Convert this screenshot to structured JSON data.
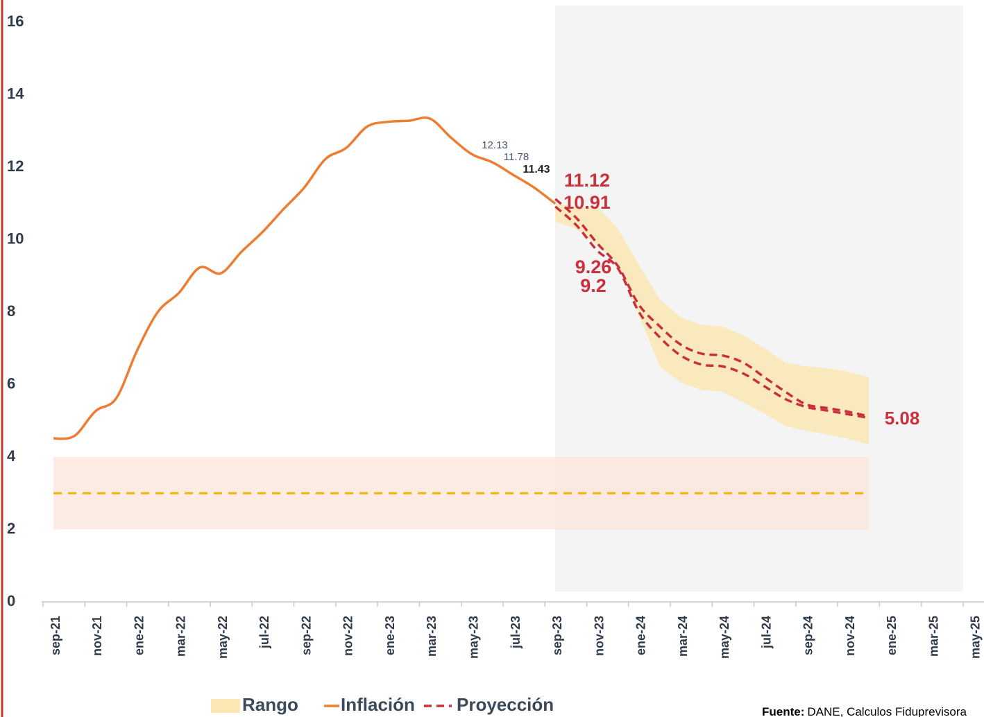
{
  "chart_data": {
    "type": "line",
    "categories": [
      "sep-21",
      null,
      "nov-21",
      null,
      "ene-22",
      null,
      "mar-22",
      null,
      "may-22",
      null,
      "jul-22",
      null,
      "sep-22",
      null,
      "nov-22",
      null,
      "ene-23",
      null,
      "mar-23",
      null,
      "may-23",
      null,
      "jul-23",
      null,
      "sep-23",
      null,
      "nov-23",
      null,
      "ene-24",
      null,
      "mar-24",
      null,
      "may-24",
      null,
      "jul-24",
      null,
      "sep-24",
      null,
      "nov-24",
      null,
      "ene-25",
      null,
      "mar-25",
      null,
      "may-25"
    ],
    "series": [
      {
        "name": "Rango",
        "kind": "range",
        "color": "#fbe6b4",
        "values": [
          null,
          null,
          null,
          null,
          null,
          null,
          null,
          null,
          null,
          null,
          null,
          null,
          null,
          null,
          null,
          null,
          null,
          null,
          null,
          null,
          null,
          null,
          null,
          null,
          11.0,
          10.9,
          10.9,
          10.3,
          9.3,
          8.35,
          7.85,
          7.65,
          7.6,
          7.35,
          7.0,
          6.6,
          6.5,
          6.45,
          6.35,
          6.2,
          null,
          null,
          null,
          null,
          null
        ],
        "low": [
          null,
          null,
          null,
          null,
          null,
          null,
          null,
          null,
          null,
          null,
          null,
          null,
          null,
          null,
          null,
          null,
          null,
          null,
          null,
          null,
          null,
          null,
          null,
          null,
          10.5,
          10.3,
          9.85,
          9.3,
          7.9,
          6.5,
          6.05,
          5.85,
          5.8,
          5.5,
          5.2,
          4.85,
          4.72,
          4.62,
          4.5,
          4.35,
          null,
          null,
          null,
          null,
          null
        ]
      },
      {
        "name": "Inflación",
        "kind": "line",
        "color": "#ed7d31",
        "values": [
          4.51,
          4.58,
          5.26,
          5.62,
          6.94,
          8.01,
          8.53,
          9.23,
          9.07,
          9.67,
          10.21,
          10.84,
          11.44,
          12.22,
          12.53,
          13.12,
          13.25,
          13.28,
          13.34,
          12.82,
          12.36,
          12.13,
          11.78,
          11.43,
          10.99,
          null,
          null,
          null,
          null,
          null,
          null,
          null,
          null,
          null,
          null,
          null,
          null,
          null,
          null,
          null,
          null,
          null,
          null,
          null,
          null
        ]
      },
      {
        "name": "Proyección",
        "kind": "dashed",
        "color": "#c8303c",
        "values": [
          null,
          null,
          null,
          null,
          null,
          null,
          null,
          null,
          null,
          null,
          null,
          null,
          null,
          null,
          null,
          null,
          null,
          null,
          null,
          null,
          null,
          null,
          null,
          null,
          11.12,
          10.6,
          9.9,
          9.26,
          8.2,
          7.6,
          7.1,
          6.85,
          6.8,
          6.6,
          6.2,
          5.8,
          5.45,
          5.35,
          5.25,
          5.12,
          null,
          null,
          null,
          null,
          null
        ],
        "low": [
          null,
          null,
          null,
          null,
          null,
          null,
          null,
          null,
          null,
          null,
          null,
          null,
          null,
          null,
          null,
          null,
          null,
          null,
          null,
          null,
          null,
          null,
          null,
          null,
          10.91,
          10.4,
          9.7,
          9.2,
          8.0,
          7.3,
          6.8,
          6.55,
          6.5,
          6.3,
          5.95,
          5.6,
          5.38,
          5.28,
          5.18,
          5.08,
          null,
          null,
          null,
          null,
          null
        ]
      }
    ],
    "target": {
      "low": 2,
      "high": 4,
      "value": 3,
      "color": "#f5b400",
      "fill": "#fbe6da"
    },
    "ylim": [
      0,
      16
    ],
    "yticks": [
      0,
      2,
      4,
      6,
      8,
      10,
      12,
      14,
      16
    ],
    "grid": false,
    "source_label": "Fuente:",
    "source": "DANE, Calculos Fiduprevisora"
  }
}
